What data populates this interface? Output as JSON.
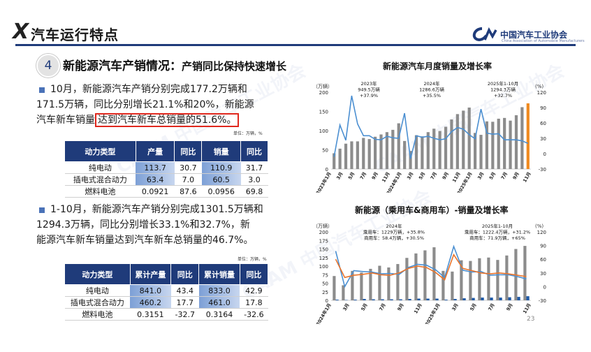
{
  "header": {
    "title": "汽车运行特点",
    "logo_text": "中国汽车工业协会",
    "logo_sub": "China Association of Automobile Manufacturers"
  },
  "section": {
    "number": "4",
    "title": "新能源汽车产销情况：",
    "subtitle": "产销同比保持快速增长"
  },
  "block1": {
    "line1": "10月，新能源汽车产销分别完成177.2万辆和",
    "line2": "171.5万辆，同比分别增长21.1%和20%，新能源",
    "line3a": "汽车新车销量",
    "line3b": "达到汽车新车总销量的51.6%。",
    "unit": "单位：万辆，%",
    "table": {
      "headers": [
        "动力类型",
        "产量",
        "同比",
        "销量",
        "同比"
      ],
      "rows": [
        [
          "纯电动",
          "113.7",
          "30.7",
          "110.9",
          "31.7"
        ],
        [
          "插电式混合动力",
          "63.4",
          "7.0",
          "60.5",
          "3.0"
        ],
        [
          "燃料电池",
          "0.0921",
          "87.6",
          "0.0956",
          "69.8"
        ]
      ]
    }
  },
  "block2": {
    "line1": "1-10月，新能源汽车产销分别完成1301.5万辆和",
    "line2": "1294.3万辆，同比分别增长33.1%和32.7%，新",
    "line3": "能源汽车新车销量达到汽车新车总销量的46.7%。",
    "unit": "单位：万辆，%",
    "table": {
      "headers": [
        "动力类型",
        "累计产量",
        "同比",
        "累计销量",
        "同比"
      ],
      "rows": [
        [
          "纯电动",
          "841.0",
          "43.4",
          "833.0",
          "42.9"
        ],
        [
          "插电式混合动力",
          "460.2",
          "17.7",
          "461.0",
          "17.8"
        ],
        [
          "燃料电池",
          "0.3151",
          "-32.7",
          "0.3164",
          "-32.6"
        ]
      ]
    }
  },
  "page_number": "23",
  "chart_data": [
    {
      "type": "bar",
      "title": "新能源汽车月度销量及增长率",
      "ylabel_left": "（万辆）",
      "ylabel_right": "(%)",
      "ylim_left": [
        0,
        200
      ],
      "yticks_left": [
        0,
        50,
        100,
        150,
        200
      ],
      "ylim_right": [
        -30,
        120
      ],
      "yticks_right": [
        -30,
        0,
        30,
        60,
        90,
        120
      ],
      "xtick_labels": [
        "2023年1月",
        "3月",
        "5月",
        "7月",
        "9月",
        "11月",
        "2024年1月",
        "3月",
        "5月",
        "7月",
        "9月",
        "11月",
        "2025年1月",
        "3月",
        "5月",
        "7月",
        "9月",
        "11月"
      ],
      "annotations": [
        {
          "lines": [
            "2023年",
            "949.5万辆",
            "+37.9%"
          ]
        },
        {
          "lines": [
            "2024年",
            "1286.6万辆",
            "+35.5%"
          ]
        },
        {
          "lines": [
            "2025年1-10月",
            "1294.3万辆",
            "+32.7%"
          ]
        }
      ],
      "series": [
        {
          "kind": "bar",
          "color": "#8c8c8c",
          "highlight_color": "#f08a1f",
          "values": [
            41,
            53,
            66,
            72,
            72,
            81,
            78,
            84,
            90,
            96,
            102,
            119,
            73,
            47,
            88,
            85,
            96,
            105,
            99,
            110,
            129,
            143,
            152,
            160,
            94,
            89,
            124,
            123,
            131,
            133,
            126,
            140,
            161,
            171
          ]
        },
        {
          "kind": "line",
          "color": "#4b8fd1",
          "values": [
            -6,
            56,
            26,
            113,
            58,
            35,
            35,
            28,
            27,
            34,
            31,
            30,
            79,
            -10,
            35,
            32,
            34,
            30,
            27,
            29,
            43,
            51,
            48,
            37,
            29,
            87,
            40,
            38,
            39,
            27,
            27,
            27,
            25,
            20
          ]
        }
      ]
    },
    {
      "type": "bar",
      "title": "新能源（乘用车&商用车）-销量及增长率",
      "ylabel_left": "（万辆）",
      "ylabel_right": "(%)",
      "ylim_left": [
        0,
        200
      ],
      "yticks_left": [
        0,
        25,
        50,
        75,
        100,
        125,
        150,
        175,
        200
      ],
      "ylim_right": [
        -30,
        120
      ],
      "yticks_right": [
        -30,
        0,
        30,
        60,
        90,
        120
      ],
      "xtick_labels": [
        "2024年1月",
        "3月",
        "5月",
        "7月",
        "9月",
        "11月",
        "2025年1月",
        "3月",
        "5月",
        "7月",
        "9月",
        "11月"
      ],
      "annotations": [
        {
          "lines": [
            "2024年",
            "乘用车：1229万辆，+35.8%",
            "商用车：58.4万辆，+30.5%"
          ]
        },
        {
          "lines": [
            "2025年1-10月",
            "乘用车：1222.4万辆，+31.2%",
            "商用车：71.9万辆，+65%"
          ]
        }
      ],
      "series": [
        {
          "kind": "bar",
          "color": "#8c8c8c",
          "values": [
            71,
            44,
            86,
            81,
            92,
            101,
            96,
            106,
            124,
            137,
            146,
            155,
            86,
            84,
            117,
            115,
            123,
            125,
            118,
            131,
            150,
            159
          ]
        },
        {
          "kind": "bar",
          "color": "#1f5aa8",
          "values": [
            2,
            1,
            2,
            4,
            3,
            3,
            3,
            3,
            4,
            5,
            5,
            5,
            2,
            4,
            6,
            7,
            8,
            8,
            8,
            9,
            10,
            12
          ]
        },
        {
          "kind": "line",
          "color": "#4b8fd1",
          "values": [
            78,
            0,
            35,
            33,
            32,
            28,
            29,
            27,
            42,
            49,
            47,
            37,
            20,
            88,
            36,
            32,
            33,
            25,
            26,
            26,
            22,
            17
          ]
        },
        {
          "kind": "line",
          "color": "#e9742b",
          "values": [
            60,
            20,
            25,
            27,
            30,
            26,
            25,
            30,
            40,
            45,
            42,
            31,
            15,
            70,
            40,
            35,
            30,
            28,
            30,
            28,
            25,
            22
          ]
        }
      ]
    }
  ]
}
